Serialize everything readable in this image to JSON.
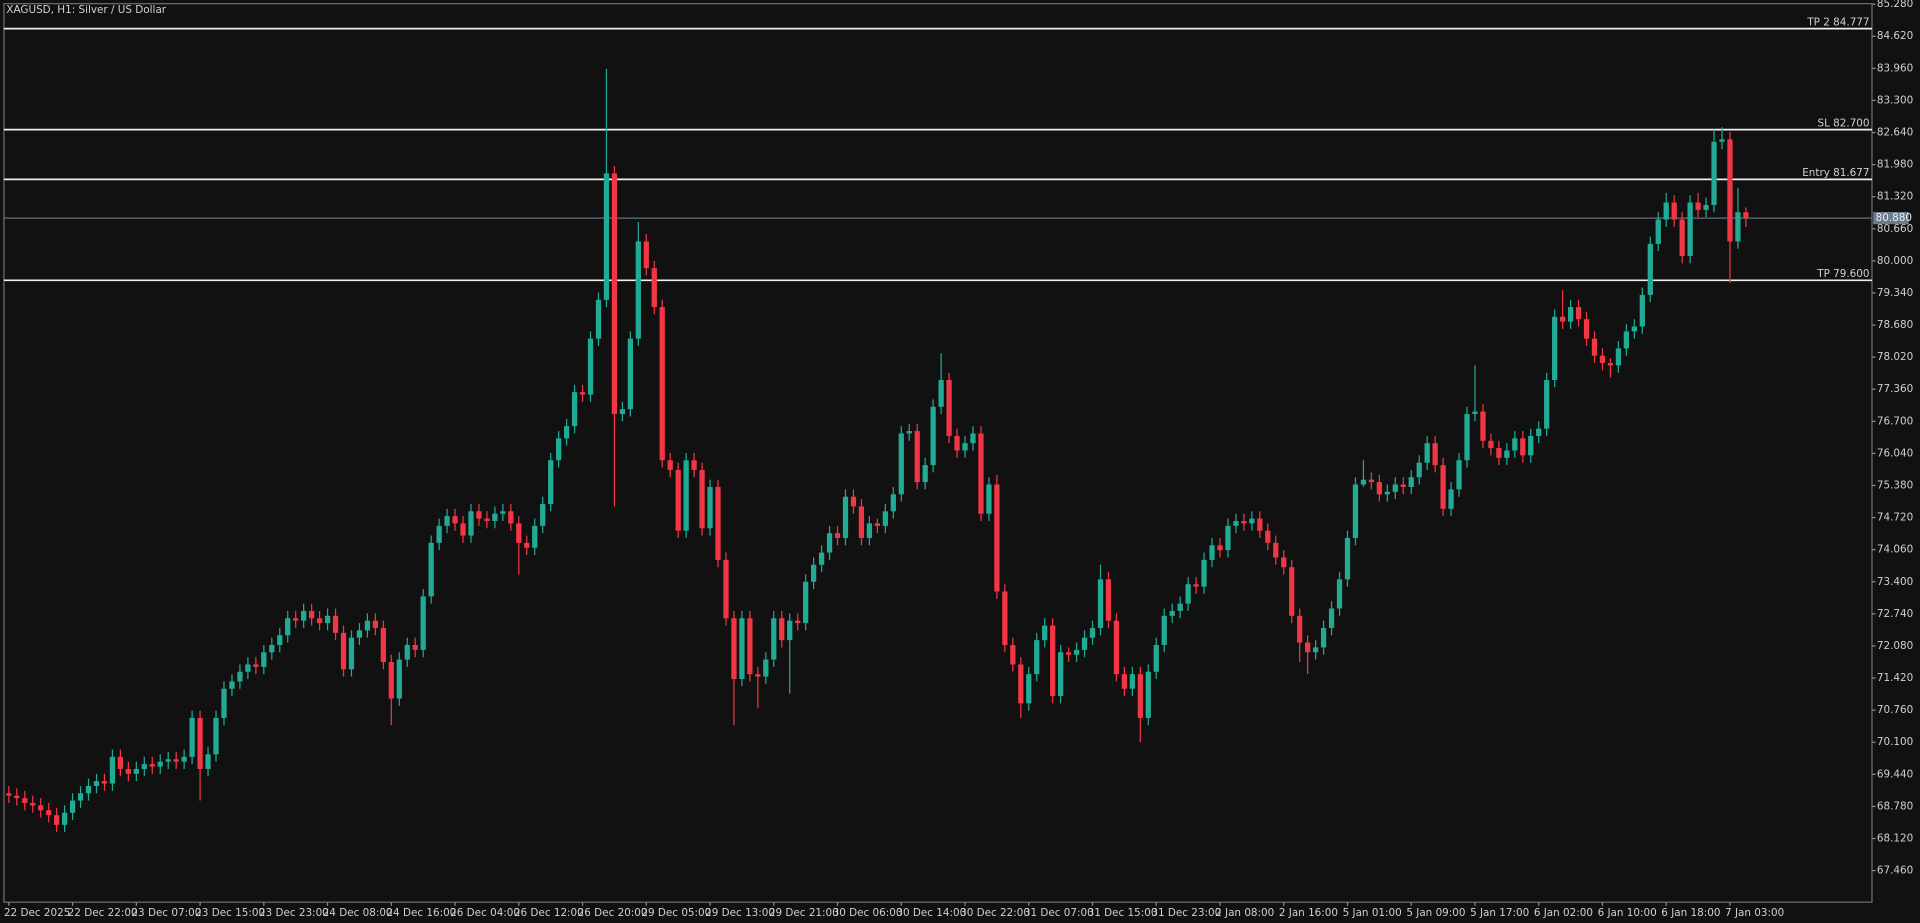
{
  "chart_data": {
    "type": "candlestick",
    "title": "XAGUSD, H1:  Silver / US Dollar",
    "up_color": "#22ab94",
    "down_color": "#f23645",
    "open": [
      69.05,
      69.0,
      68.95,
      68.85,
      68.8,
      68.7,
      68.6,
      68.4,
      68.65,
      68.9,
      69.05,
      69.2,
      69.3,
      69.25,
      69.8,
      69.55,
      69.45,
      69.55,
      69.65,
      69.6,
      69.7,
      69.75,
      69.7,
      69.8,
      70.6,
      69.55,
      69.85,
      70.6,
      71.2,
      71.35,
      71.55,
      71.7,
      71.65,
      71.95,
      72.1,
      72.3,
      72.65,
      72.6,
      72.8,
      72.65,
      72.55,
      72.7,
      72.35,
      71.6,
      72.25,
      72.4,
      72.6,
      72.45,
      71.75,
      71.0,
      71.8,
      72.1,
      72.0,
      73.1,
      74.2,
      74.55,
      74.75,
      74.6,
      74.35,
      74.85,
      74.7,
      74.65,
      74.8,
      74.85,
      74.6,
      74.2,
      74.1,
      74.55,
      75.0,
      75.9,
      76.35,
      76.6,
      77.3,
      77.25,
      78.4,
      79.2,
      81.8,
      76.85,
      76.95,
      78.4,
      80.4,
      79.85,
      79.05,
      75.9,
      75.7,
      74.45,
      75.9,
      75.7,
      74.5,
      75.35,
      73.85,
      72.65,
      71.4,
      72.65,
      71.5,
      71.45,
      71.8,
      72.65,
      72.2,
      72.6,
      72.55,
      73.4,
      73.75,
      74.0,
      74.4,
      74.3,
      75.15,
      74.95,
      74.3,
      74.6,
      74.55,
      74.85,
      75.2,
      76.45,
      76.5,
      75.45,
      75.8,
      77.0,
      77.55,
      76.4,
      76.1,
      76.25,
      76.45,
      74.8,
      75.4,
      73.2,
      72.1,
      71.7,
      70.9,
      71.5,
      72.2,
      72.5,
      71.05,
      71.95,
      71.9,
      72.0,
      72.25,
      72.45,
      73.45,
      72.6,
      71.5,
      71.2,
      71.5,
      70.6,
      71.55,
      72.1,
      72.7,
      72.8,
      72.95,
      73.35,
      73.3,
      73.85,
      74.15,
      74.05,
      74.55,
      74.65,
      74.6,
      74.7,
      74.45,
      74.2,
      73.9,
      73.7,
      72.7,
      72.15,
      71.95,
      72.05,
      72.45,
      72.85,
      73.45,
      74.3,
      75.4,
      75.5,
      75.45,
      75.2,
      75.25,
      75.4,
      75.35,
      75.55,
      75.85,
      76.25,
      75.8,
      74.9,
      75.3,
      75.9,
      76.85,
      76.9,
      76.3,
      76.15,
      75.95,
      76.1,
      76.35,
      76.0,
      76.4,
      76.55,
      77.55,
      78.85,
      78.75,
      79.05,
      78.8,
      78.4,
      78.05,
      77.9,
      77.85,
      78.2,
      78.55,
      78.65,
      79.3,
      80.35,
      80.85,
      81.2,
      80.85,
      80.1,
      81.2,
      81.05,
      81.15,
      82.45,
      82.5,
      80.4,
      81.0
    ],
    "high": [
      69.2,
      69.15,
      69.1,
      69.0,
      68.95,
      68.85,
      68.75,
      68.8,
      69.05,
      69.2,
      69.35,
      69.45,
      69.45,
      69.95,
      69.95,
      69.7,
      69.7,
      69.8,
      69.8,
      69.85,
      69.9,
      69.9,
      69.95,
      70.75,
      70.75,
      70.0,
      70.75,
      71.35,
      71.5,
      71.7,
      71.85,
      71.85,
      72.1,
      72.25,
      72.45,
      72.8,
      72.8,
      72.95,
      72.95,
      72.8,
      72.85,
      72.85,
      72.5,
      72.4,
      72.55,
      72.75,
      72.75,
      72.6,
      71.9,
      71.95,
      72.25,
      72.25,
      73.25,
      74.35,
      74.7,
      74.9,
      74.9,
      74.75,
      75.0,
      75.0,
      74.85,
      74.95,
      75.0,
      75.0,
      74.75,
      74.35,
      74.7,
      75.15,
      76.05,
      76.5,
      76.75,
      77.45,
      77.45,
      78.55,
      79.35,
      83.95,
      81.95,
      77.1,
      78.55,
      80.8,
      80.55,
      80.0,
      79.2,
      76.05,
      75.85,
      76.05,
      76.05,
      75.85,
      75.5,
      75.5,
      74.0,
      72.8,
      72.8,
      72.8,
      71.65,
      71.95,
      72.8,
      72.8,
      72.75,
      72.75,
      73.55,
      73.9,
      74.15,
      74.55,
      74.55,
      75.3,
      75.3,
      75.1,
      74.75,
      74.7,
      75.0,
      75.35,
      76.6,
      76.65,
      76.65,
      75.95,
      77.15,
      78.1,
      77.7,
      76.55,
      76.4,
      76.6,
      76.6,
      75.55,
      75.6,
      73.35,
      72.25,
      71.85,
      71.65,
      72.35,
      72.65,
      72.65,
      72.1,
      72.05,
      72.15,
      72.4,
      72.6,
      73.75,
      73.6,
      72.75,
      71.65,
      71.65,
      71.65,
      71.7,
      72.25,
      72.85,
      72.95,
      73.1,
      73.5,
      73.5,
      74.0,
      74.3,
      74.3,
      74.7,
      74.8,
      74.8,
      74.85,
      74.85,
      74.6,
      74.35,
      74.05,
      73.85,
      72.85,
      72.3,
      72.2,
      72.6,
      73.0,
      73.6,
      74.45,
      75.55,
      75.9,
      75.65,
      75.6,
      75.4,
      75.55,
      75.55,
      75.7,
      76.0,
      76.4,
      76.4,
      75.95,
      75.45,
      76.05,
      77.0,
      77.85,
      77.05,
      76.45,
      76.3,
      76.25,
      76.5,
      76.5,
      76.55,
      76.7,
      77.7,
      79.0,
      79.4,
      79.2,
      79.2,
      78.95,
      78.55,
      78.2,
      78.0,
      78.35,
      78.7,
      78.8,
      79.45,
      80.5,
      81.0,
      81.4,
      81.35,
      81.0,
      81.35,
      81.4,
      81.3,
      82.7,
      82.75,
      82.65,
      81.5,
      81.1
    ],
    "low": [
      68.85,
      68.8,
      68.7,
      68.65,
      68.55,
      68.45,
      68.25,
      68.25,
      68.5,
      68.75,
      68.9,
      69.05,
      69.1,
      69.1,
      69.4,
      69.3,
      69.3,
      69.4,
      69.45,
      69.45,
      69.55,
      69.55,
      69.55,
      69.65,
      68.9,
      69.4,
      69.7,
      70.45,
      71.05,
      71.2,
      71.4,
      71.5,
      71.5,
      71.8,
      71.95,
      72.15,
      72.45,
      72.45,
      72.5,
      72.4,
      72.4,
      72.2,
      71.45,
      71.45,
      72.1,
      72.25,
      72.3,
      71.6,
      70.45,
      70.85,
      71.65,
      71.85,
      71.85,
      72.95,
      74.05,
      74.4,
      74.45,
      74.2,
      74.2,
      74.55,
      74.5,
      74.5,
      74.65,
      74.45,
      73.55,
      73.95,
      73.95,
      74.4,
      74.85,
      75.75,
      76.2,
      76.45,
      77.1,
      77.1,
      78.25,
      79.05,
      74.95,
      76.7,
      76.8,
      78.25,
      79.7,
      78.9,
      75.75,
      75.55,
      74.3,
      74.3,
      75.55,
      74.35,
      74.35,
      73.7,
      72.5,
      70.45,
      71.25,
      71.35,
      70.8,
      71.3,
      71.65,
      72.05,
      71.1,
      72.4,
      72.4,
      73.25,
      73.6,
      73.85,
      74.15,
      74.15,
      74.8,
      74.15,
      74.15,
      74.4,
      74.4,
      74.7,
      75.05,
      76.3,
      75.3,
      75.3,
      75.65,
      76.85,
      76.25,
      75.95,
      75.95,
      76.1,
      74.65,
      74.65,
      73.05,
      71.95,
      71.55,
      70.6,
      70.75,
      71.35,
      72.05,
      70.9,
      70.9,
      71.75,
      71.75,
      71.85,
      72.1,
      72.3,
      72.45,
      71.35,
      71.05,
      71.05,
      70.1,
      70.45,
      71.4,
      71.95,
      72.55,
      72.65,
      72.8,
      73.15,
      73.15,
      73.7,
      73.9,
      73.9,
      74.4,
      74.45,
      74.45,
      74.3,
      74.05,
      73.75,
      73.55,
      72.55,
      71.75,
      71.5,
      71.8,
      71.9,
      72.3,
      72.7,
      73.3,
      74.15,
      75.35,
      75.3,
      75.05,
      75.05,
      75.1,
      75.2,
      75.2,
      75.4,
      75.7,
      75.65,
      74.75,
      74.75,
      75.15,
      75.75,
      76.7,
      76.15,
      76.0,
      75.8,
      75.8,
      75.95,
      75.85,
      75.85,
      76.25,
      76.4,
      77.4,
      78.6,
      78.6,
      78.65,
      78.25,
      77.9,
      77.75,
      77.6,
      77.7,
      78.05,
      78.4,
      78.5,
      79.15,
      80.2,
      80.7,
      80.7,
      79.95,
      79.95,
      80.9,
      80.9,
      81.0,
      82.3,
      79.55,
      80.25,
      80.7
    ],
    "close": [
      69.0,
      68.95,
      68.85,
      68.8,
      68.7,
      68.6,
      68.4,
      68.65,
      68.9,
      69.05,
      69.2,
      69.3,
      69.25,
      69.8,
      69.55,
      69.45,
      69.55,
      69.65,
      69.6,
      69.7,
      69.75,
      69.7,
      69.8,
      70.6,
      69.55,
      69.85,
      70.6,
      71.2,
      71.35,
      71.55,
      71.7,
      71.65,
      71.95,
      72.1,
      72.3,
      72.65,
      72.6,
      72.8,
      72.65,
      72.55,
      72.7,
      72.35,
      71.6,
      72.25,
      72.4,
      72.6,
      72.45,
      71.75,
      71.0,
      71.8,
      72.1,
      72.0,
      73.1,
      74.2,
      74.55,
      74.75,
      74.6,
      74.35,
      74.85,
      74.7,
      74.65,
      74.8,
      74.85,
      74.6,
      74.2,
      74.1,
      74.55,
      75.0,
      75.9,
      76.35,
      76.6,
      77.3,
      77.25,
      78.4,
      79.2,
      81.8,
      76.85,
      76.95,
      78.4,
      80.4,
      79.85,
      79.05,
      75.9,
      75.7,
      74.45,
      75.9,
      75.7,
      74.5,
      75.35,
      73.85,
      72.65,
      71.4,
      72.65,
      71.5,
      71.45,
      71.8,
      72.65,
      72.2,
      72.6,
      72.55,
      73.4,
      73.75,
      74.0,
      74.4,
      74.3,
      75.15,
      74.95,
      74.3,
      74.6,
      74.55,
      74.85,
      75.2,
      76.45,
      76.5,
      75.45,
      75.8,
      77.0,
      77.55,
      76.4,
      76.1,
      76.25,
      76.45,
      74.8,
      75.4,
      73.2,
      72.1,
      71.7,
      70.9,
      71.5,
      72.2,
      72.5,
      71.05,
      71.95,
      71.9,
      72.0,
      72.25,
      72.45,
      73.45,
      72.6,
      71.5,
      71.2,
      71.5,
      70.6,
      71.55,
      72.1,
      72.7,
      72.8,
      72.95,
      73.35,
      73.3,
      73.85,
      74.15,
      74.05,
      74.55,
      74.65,
      74.6,
      74.7,
      74.45,
      74.2,
      73.9,
      73.7,
      72.7,
      72.15,
      71.95,
      72.05,
      72.45,
      72.85,
      73.45,
      74.3,
      75.4,
      75.5,
      75.45,
      75.2,
      75.25,
      75.4,
      75.35,
      75.55,
      75.85,
      76.25,
      75.8,
      74.9,
      75.3,
      75.9,
      76.85,
      76.9,
      76.3,
      76.15,
      75.95,
      76.1,
      76.35,
      76.0,
      76.4,
      76.55,
      77.55,
      78.85,
      78.75,
      79.05,
      78.8,
      78.4,
      78.05,
      77.9,
      77.85,
      78.2,
      78.55,
      78.65,
      79.3,
      80.35,
      80.85,
      81.2,
      80.85,
      80.1,
      81.2,
      81.05,
      81.15,
      82.45,
      82.5,
      80.4,
      81.0,
      80.88
    ],
    "xticks": [
      {
        "value": 0,
        "label": "22 Dec 2025"
      },
      {
        "value": 8,
        "label": "22 Dec 22:00"
      },
      {
        "value": 16,
        "label": "23 Dec 07:00"
      },
      {
        "value": 24,
        "label": "23 Dec 15:00"
      },
      {
        "value": 32,
        "label": "23 Dec 23:00"
      },
      {
        "value": 40,
        "label": "24 Dec 08:00"
      },
      {
        "value": 48,
        "label": "24 Dec 16:00"
      },
      {
        "value": 56,
        "label": "26 Dec 04:00"
      },
      {
        "value": 64,
        "label": "26 Dec 12:00"
      },
      {
        "value": 72,
        "label": "26 Dec 20:00"
      },
      {
        "value": 80,
        "label": "29 Dec 05:00"
      },
      {
        "value": 88,
        "label": "29 Dec 13:00"
      },
      {
        "value": 96,
        "label": "29 Dec 21:00"
      },
      {
        "value": 104,
        "label": "30 Dec 06:00"
      },
      {
        "value": 112,
        "label": "30 Dec 14:00"
      },
      {
        "value": 120,
        "label": "30 Dec 22:00"
      },
      {
        "value": 128,
        "label": "31 Dec 07:00"
      },
      {
        "value": 136,
        "label": "31 Dec 15:00"
      },
      {
        "value": 144,
        "label": "31 Dec 23:00"
      },
      {
        "value": 152,
        "label": "2 Jan 08:00"
      },
      {
        "value": 160,
        "label": "2 Jan 16:00"
      },
      {
        "value": 168,
        "label": "5 Jan 01:00"
      },
      {
        "value": 176,
        "label": "5 Jan 09:00"
      },
      {
        "value": 184,
        "label": "5 Jan 17:00"
      },
      {
        "value": 192,
        "label": "6 Jan 02:00"
      },
      {
        "value": 200,
        "label": "6 Jan 10:00"
      },
      {
        "value": 208,
        "label": "6 Jan 18:00"
      },
      {
        "value": 216,
        "label": "7 Jan 03:00"
      }
    ],
    "ylim": [
      66.81,
      85.29
    ],
    "yticks": [
      {
        "value": 67.46,
        "label": "67.460"
      },
      {
        "value": 68.12,
        "label": "68.120"
      },
      {
        "value": 68.78,
        "label": "68.780"
      },
      {
        "value": 69.44,
        "label": "69.440"
      },
      {
        "value": 70.1,
        "label": "70.100"
      },
      {
        "value": 70.76,
        "label": "70.760"
      },
      {
        "value": 71.42,
        "label": "71.420"
      },
      {
        "value": 72.08,
        "label": "72.080"
      },
      {
        "value": 72.74,
        "label": "72.740"
      },
      {
        "value": 73.4,
        "label": "73.400"
      },
      {
        "value": 74.06,
        "label": "74.060"
      },
      {
        "value": 74.72,
        "label": "74.720"
      },
      {
        "value": 75.38,
        "label": "75.380"
      },
      {
        "value": 76.04,
        "label": "76.040"
      },
      {
        "value": 76.7,
        "label": "76.700"
      },
      {
        "value": 77.36,
        "label": "77.360"
      },
      {
        "value": 78.02,
        "label": "78.020"
      },
      {
        "value": 78.68,
        "label": "78.680"
      },
      {
        "value": 79.34,
        "label": "79.340"
      },
      {
        "value": 80,
        "label": "80.000"
      },
      {
        "value": 80.66,
        "label": "80.660"
      },
      {
        "value": 81.32,
        "label": "81.320"
      },
      {
        "value": 81.98,
        "label": "81.980"
      },
      {
        "value": 82.64,
        "label": "82.640"
      },
      {
        "value": 83.3,
        "label": "83.300"
      },
      {
        "value": 83.96,
        "label": "83.960"
      },
      {
        "value": 84.62,
        "label": "84.620"
      },
      {
        "value": 85.28,
        "label": "85.280"
      }
    ],
    "levels": [
      {
        "label": "TP 2 84.777",
        "value": 84.777
      },
      {
        "label": "SL 82.700",
        "value": 82.7
      },
      {
        "label": "Entry 81.677",
        "value": 81.677
      },
      {
        "label": "TP 79.600",
        "value": 79.6
      }
    ],
    "price_line": {
      "value": 80.88,
      "label": "80.880"
    }
  }
}
